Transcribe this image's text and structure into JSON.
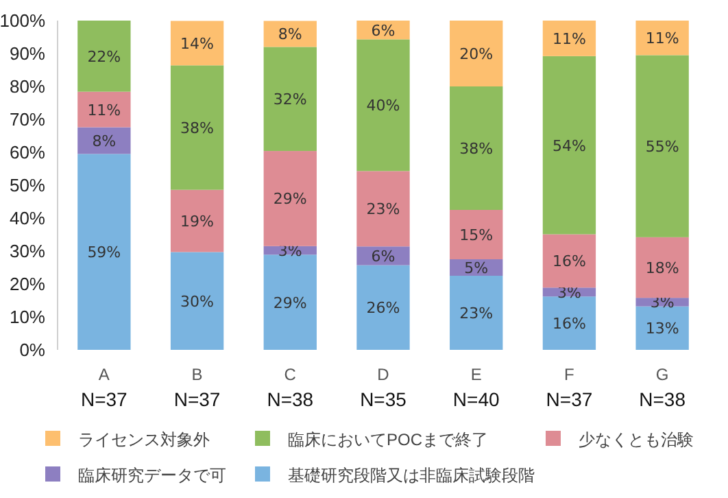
{
  "chart_data": {
    "type": "bar",
    "stacked": true,
    "legend": "bottom",
    "grid": false,
    "categories": [
      "A N=37",
      "B N=37",
      "C N=38",
      "D N=35",
      "E N=40",
      "F N=37",
      "G N=38"
    ],
    "ylim": [
      0,
      100
    ],
    "yticks": [
      {
        "value": 0,
        "label": "0%"
      },
      {
        "value": 10,
        "label": "10%"
      },
      {
        "value": 20,
        "label": "20%"
      },
      {
        "value": 30,
        "label": "30%"
      },
      {
        "value": 40,
        "label": "40%"
      },
      {
        "value": 50,
        "label": "50%"
      },
      {
        "value": 60,
        "label": "60%"
      },
      {
        "value": 70,
        "label": "70%"
      },
      {
        "value": 80,
        "label": "80%"
      },
      {
        "value": 90,
        "label": "90%"
      },
      {
        "value": 100,
        "label": "100%"
      }
    ],
    "series": [
      {
        "name": "基礎研究段階又は非臨床試験段階",
        "color": "#7ab4e0",
        "values": [
          59.5,
          29.7,
          28.9,
          25.7,
          22.5,
          16.2,
          13.2
        ],
        "value_labels": [
          "59%",
          "30%",
          "29%",
          "26%",
          "23%",
          "16%",
          "13%"
        ]
      },
      {
        "name": "臨床研究データで可",
        "color": "#8d7fc1",
        "values": [
          8.1,
          null,
          2.6,
          5.7,
          5,
          2.7,
          2.6
        ],
        "value_labels": [
          "8%",
          null,
          "3%",
          "6%",
          "5%",
          "3%",
          "3%"
        ]
      },
      {
        "name": "少なくとも治験",
        "color": "#de8c94",
        "values": [
          10.8,
          18.9,
          28.9,
          22.9,
          15,
          16.2,
          18.4
        ],
        "value_labels": [
          "11%",
          "19%",
          "29%",
          "23%",
          "15%",
          "16%",
          "18%"
        ]
      },
      {
        "name": "臨床においてPOCまで終了",
        "color": "#8fbd5e",
        "values": [
          21.6,
          37.8,
          31.6,
          40,
          37.5,
          54.1,
          55.3
        ],
        "value_labels": [
          "22%",
          "38%",
          "32%",
          "40%",
          "38%",
          "54%",
          "55%"
        ]
      },
      {
        "name": "ライセンス対象外",
        "color": "#fdbf6f",
        "values": [
          null,
          13.5,
          7.9,
          5.7,
          20,
          10.8,
          10.5
        ],
        "value_labels": [
          null,
          "14%",
          "8%",
          "6%",
          "20%",
          "11%",
          "11%"
        ]
      }
    ]
  }
}
